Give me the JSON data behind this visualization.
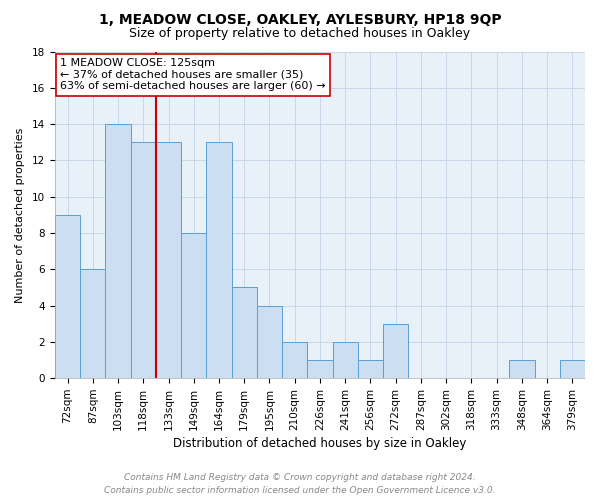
{
  "title1": "1, MEADOW CLOSE, OAKLEY, AYLESBURY, HP18 9QP",
  "title2": "Size of property relative to detached houses in Oakley",
  "xlabel": "Distribution of detached houses by size in Oakley",
  "ylabel": "Number of detached properties",
  "bar_labels": [
    "72sqm",
    "87sqm",
    "103sqm",
    "118sqm",
    "133sqm",
    "149sqm",
    "164sqm",
    "179sqm",
    "195sqm",
    "210sqm",
    "226sqm",
    "241sqm",
    "256sqm",
    "272sqm",
    "287sqm",
    "302sqm",
    "318sqm",
    "333sqm",
    "348sqm",
    "364sqm",
    "379sqm"
  ],
  "bar_values": [
    9,
    6,
    14,
    13,
    13,
    8,
    13,
    5,
    4,
    2,
    1,
    2,
    1,
    3,
    0,
    0,
    0,
    0,
    1,
    0,
    1
  ],
  "bar_color": "#ccdff2",
  "bar_edge_color": "#5a9fd4",
  "vline_x": 4.0,
  "vline_color": "#cc0000",
  "annotation_text": "1 MEADOW CLOSE: 125sqm\n← 37% of detached houses are smaller (35)\n63% of semi-detached houses are larger (60) →",
  "annotation_box_color": "#ffffff",
  "annotation_box_edge": "#cc0000",
  "ylim": [
    0,
    18
  ],
  "yticks": [
    0,
    2,
    4,
    6,
    8,
    10,
    12,
    14,
    16,
    18
  ],
  "grid_color": "#c8d8e8",
  "background_color": "#e8f0f8",
  "footer_line1": "Contains HM Land Registry data © Crown copyright and database right 2024.",
  "footer_line2": "Contains public sector information licensed under the Open Government Licence v3.0.",
  "title1_fontsize": 10,
  "title2_fontsize": 9,
  "xlabel_fontsize": 8.5,
  "ylabel_fontsize": 8,
  "tick_fontsize": 7.5,
  "annotation_fontsize": 8,
  "footer_fontsize": 6.5
}
